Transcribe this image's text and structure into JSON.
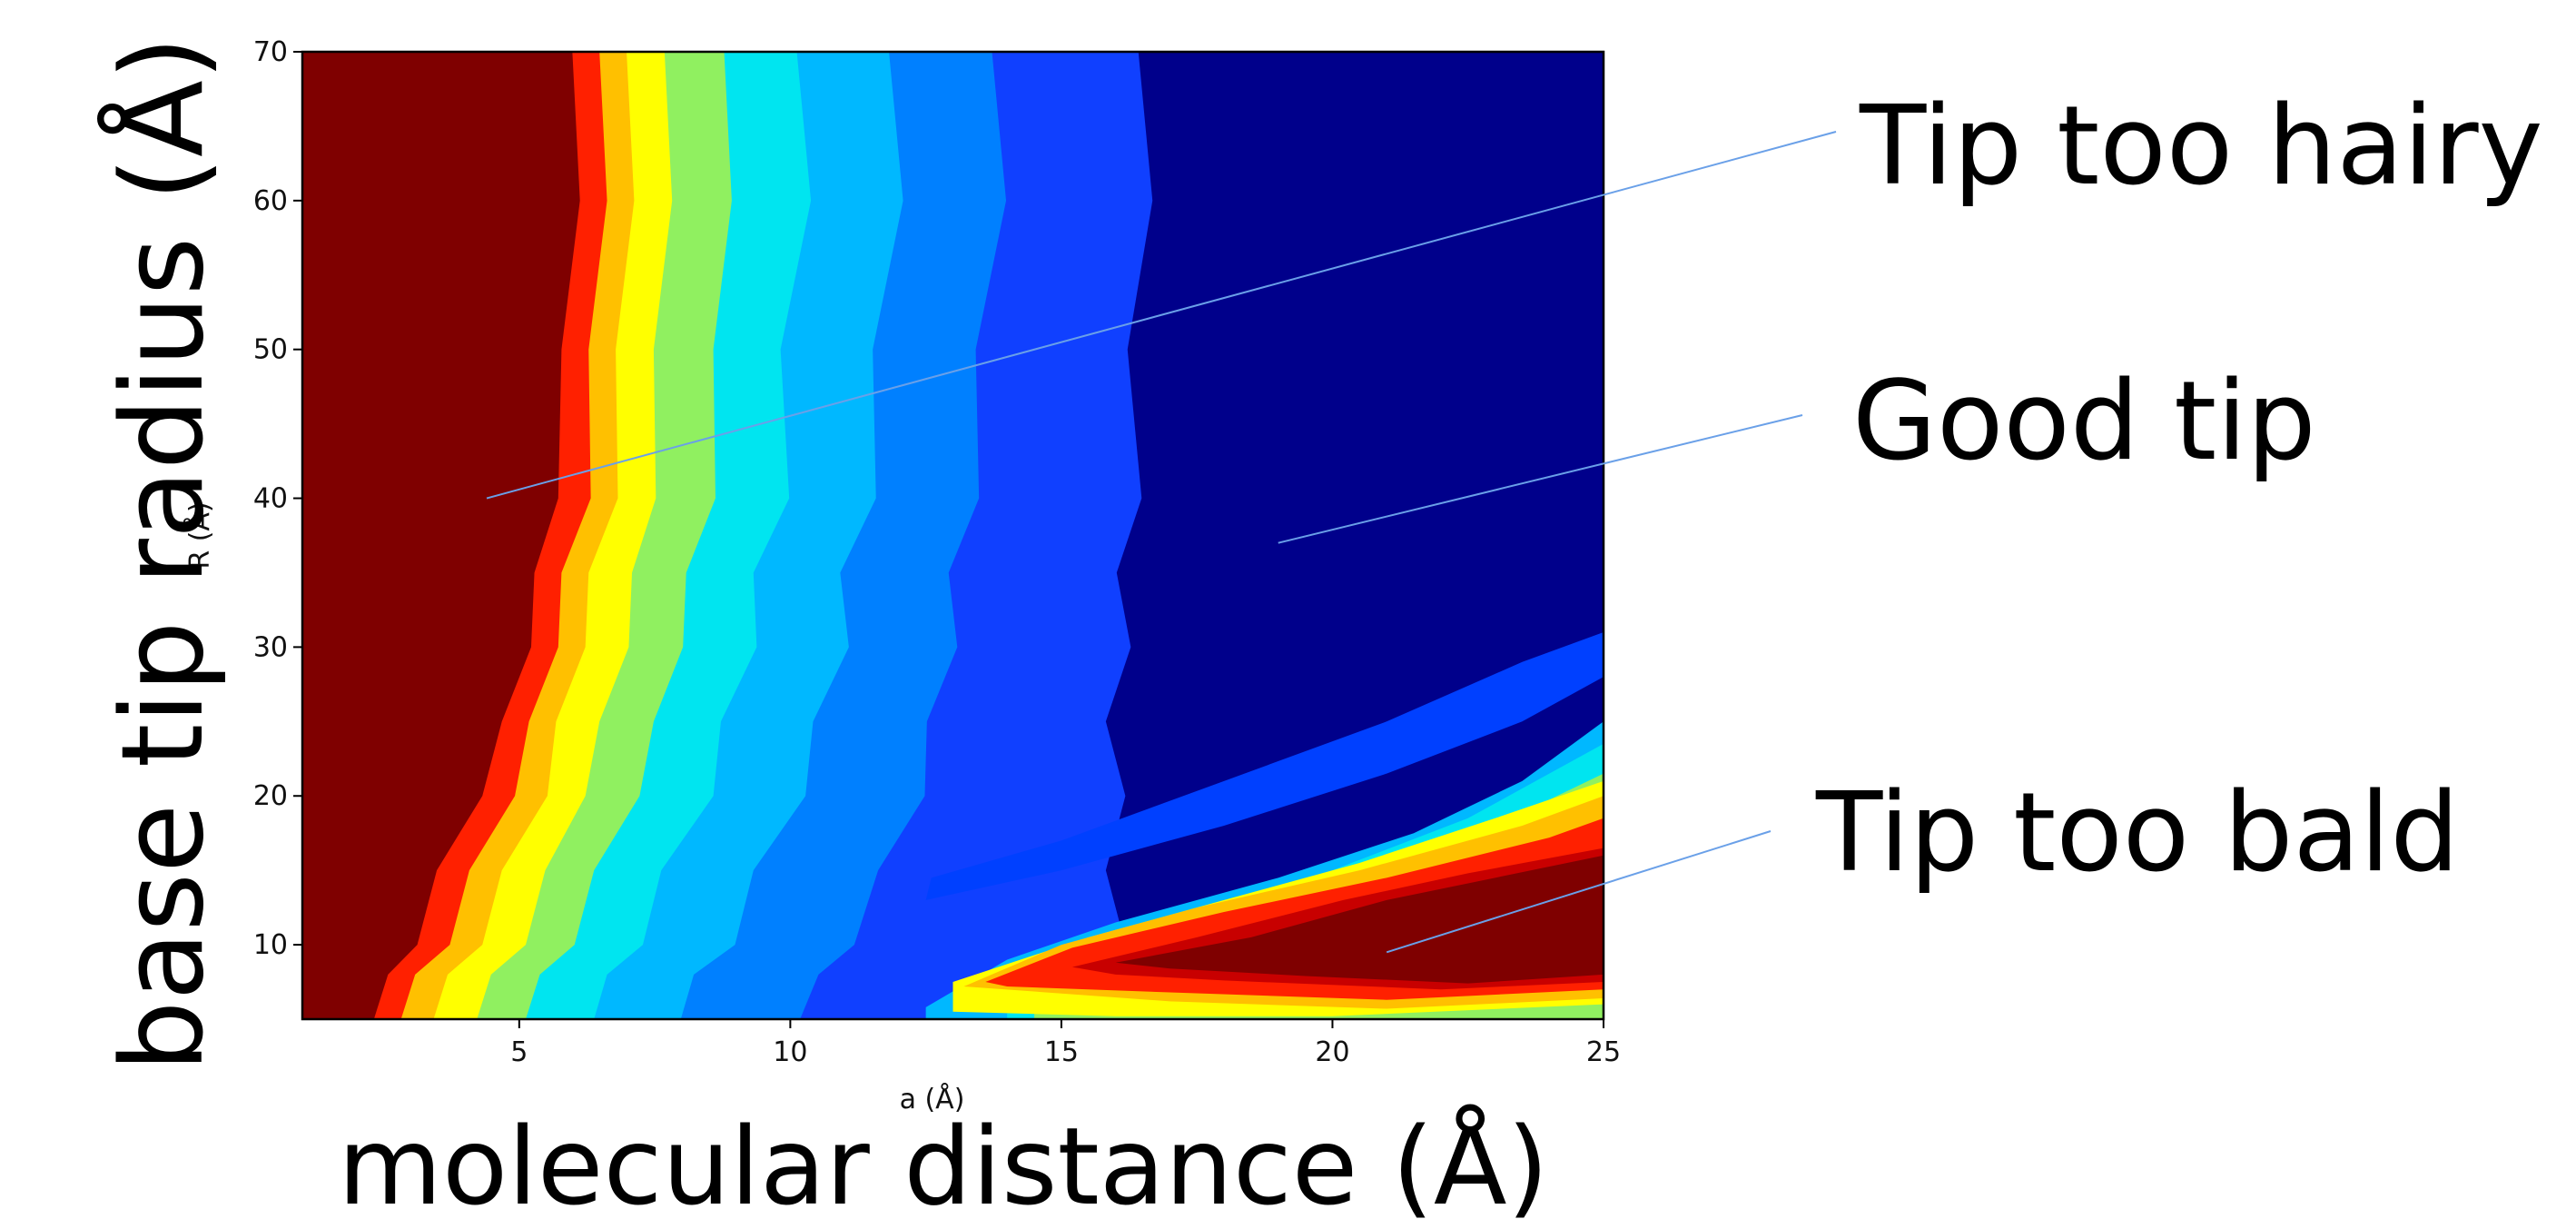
{
  "overlay": {
    "y_label_large": "base tip radius (Å)",
    "x_label_large": "molecular distance (Å)",
    "annotations": [
      {
        "text": "Tip too hairy",
        "x": 4.4,
        "y": 40
      },
      {
        "text": "Good tip",
        "x": 19.0,
        "y": 37
      },
      {
        "text": "Tip too bald",
        "x": 21.0,
        "y": 9.5
      }
    ]
  },
  "chart_data": {
    "type": "heatmap",
    "title": "",
    "xlabel": "a (Å)",
    "ylabel": "R (Å)",
    "xlim": [
      1,
      25
    ],
    "ylim": [
      5,
      70
    ],
    "x_ticks": [
      5,
      10,
      15,
      20,
      25
    ],
    "y_ticks": [
      10,
      20,
      30,
      40,
      50,
      60,
      70
    ],
    "colormap": "jet",
    "color_levels": [
      "#00008b",
      "#0000cd",
      "#1040ff",
      "#0080ff",
      "#00b8ff",
      "#00e5f0",
      "#40f0b0",
      "#90f060",
      "#d8f020",
      "#ffff00",
      "#ffc000",
      "#ff7000",
      "#ff2000",
      "#c80000",
      "#7f0000"
    ],
    "boundaries": {
      "R_values": [
        5,
        8,
        10,
        15,
        20,
        25,
        30,
        35,
        40,
        50,
        60,
        70
      ],
      "upper_region_contours_a": [
        [
          2.2,
          2.7,
          3.0,
          3.6,
          4.2,
          4.8,
          5.1,
          5.4,
          5.6,
          5.9,
          6.0,
          6.1
        ],
        [
          2.7,
          3.2,
          3.6,
          4.2,
          4.8,
          5.3,
          5.6,
          5.9,
          6.2,
          6.4,
          6.5,
          6.6
        ],
        [
          3.3,
          3.8,
          4.2,
          4.8,
          5.4,
          5.8,
          6.1,
          6.4,
          6.7,
          6.9,
          7.0,
          7.1
        ],
        [
          4.1,
          4.6,
          5.0,
          5.6,
          6.1,
          6.6,
          6.9,
          7.2,
          7.4,
          7.6,
          7.7,
          7.8
        ],
        [
          5.0,
          5.5,
          5.9,
          6.5,
          7.1,
          7.6,
          7.9,
          8.2,
          8.5,
          8.7,
          8.8,
          8.9
        ],
        [
          6.2,
          6.8,
          7.1,
          7.8,
          8.4,
          8.9,
          9.2,
          9.5,
          9.8,
          10.0,
          10.2,
          10.3
        ],
        [
          7.8,
          8.4,
          8.8,
          9.5,
          10.1,
          10.6,
          10.9,
          11.1,
          11.4,
          11.7,
          11.9,
          12.0
        ],
        [
          10.0,
          10.7,
          11.0,
          11.8,
          12.3,
          12.7,
          12.9,
          13.1,
          13.3,
          13.6,
          13.8,
          13.9
        ],
        [
          13.0,
          14.0,
          16.0,
          16.0,
          16.0,
          16.0,
          16.1,
          16.2,
          16.3,
          16.4,
          16.5,
          16.6
        ]
      ],
      "lower_bands": [
        {
          "R_bottom": [
            8,
            12.5,
            15,
            17,
            19,
            21,
            23,
            25
          ],
          "R_top": [
            8,
            13.5,
            17.8,
            20.8,
            23.6,
            27.5,
            29.5,
            31
          ],
          "a_bottom": [
            13.0,
            13.0,
            16.5,
            19.0,
            21.0,
            23.0,
            24.3,
            25.0
          ]
        }
      ]
    }
  }
}
